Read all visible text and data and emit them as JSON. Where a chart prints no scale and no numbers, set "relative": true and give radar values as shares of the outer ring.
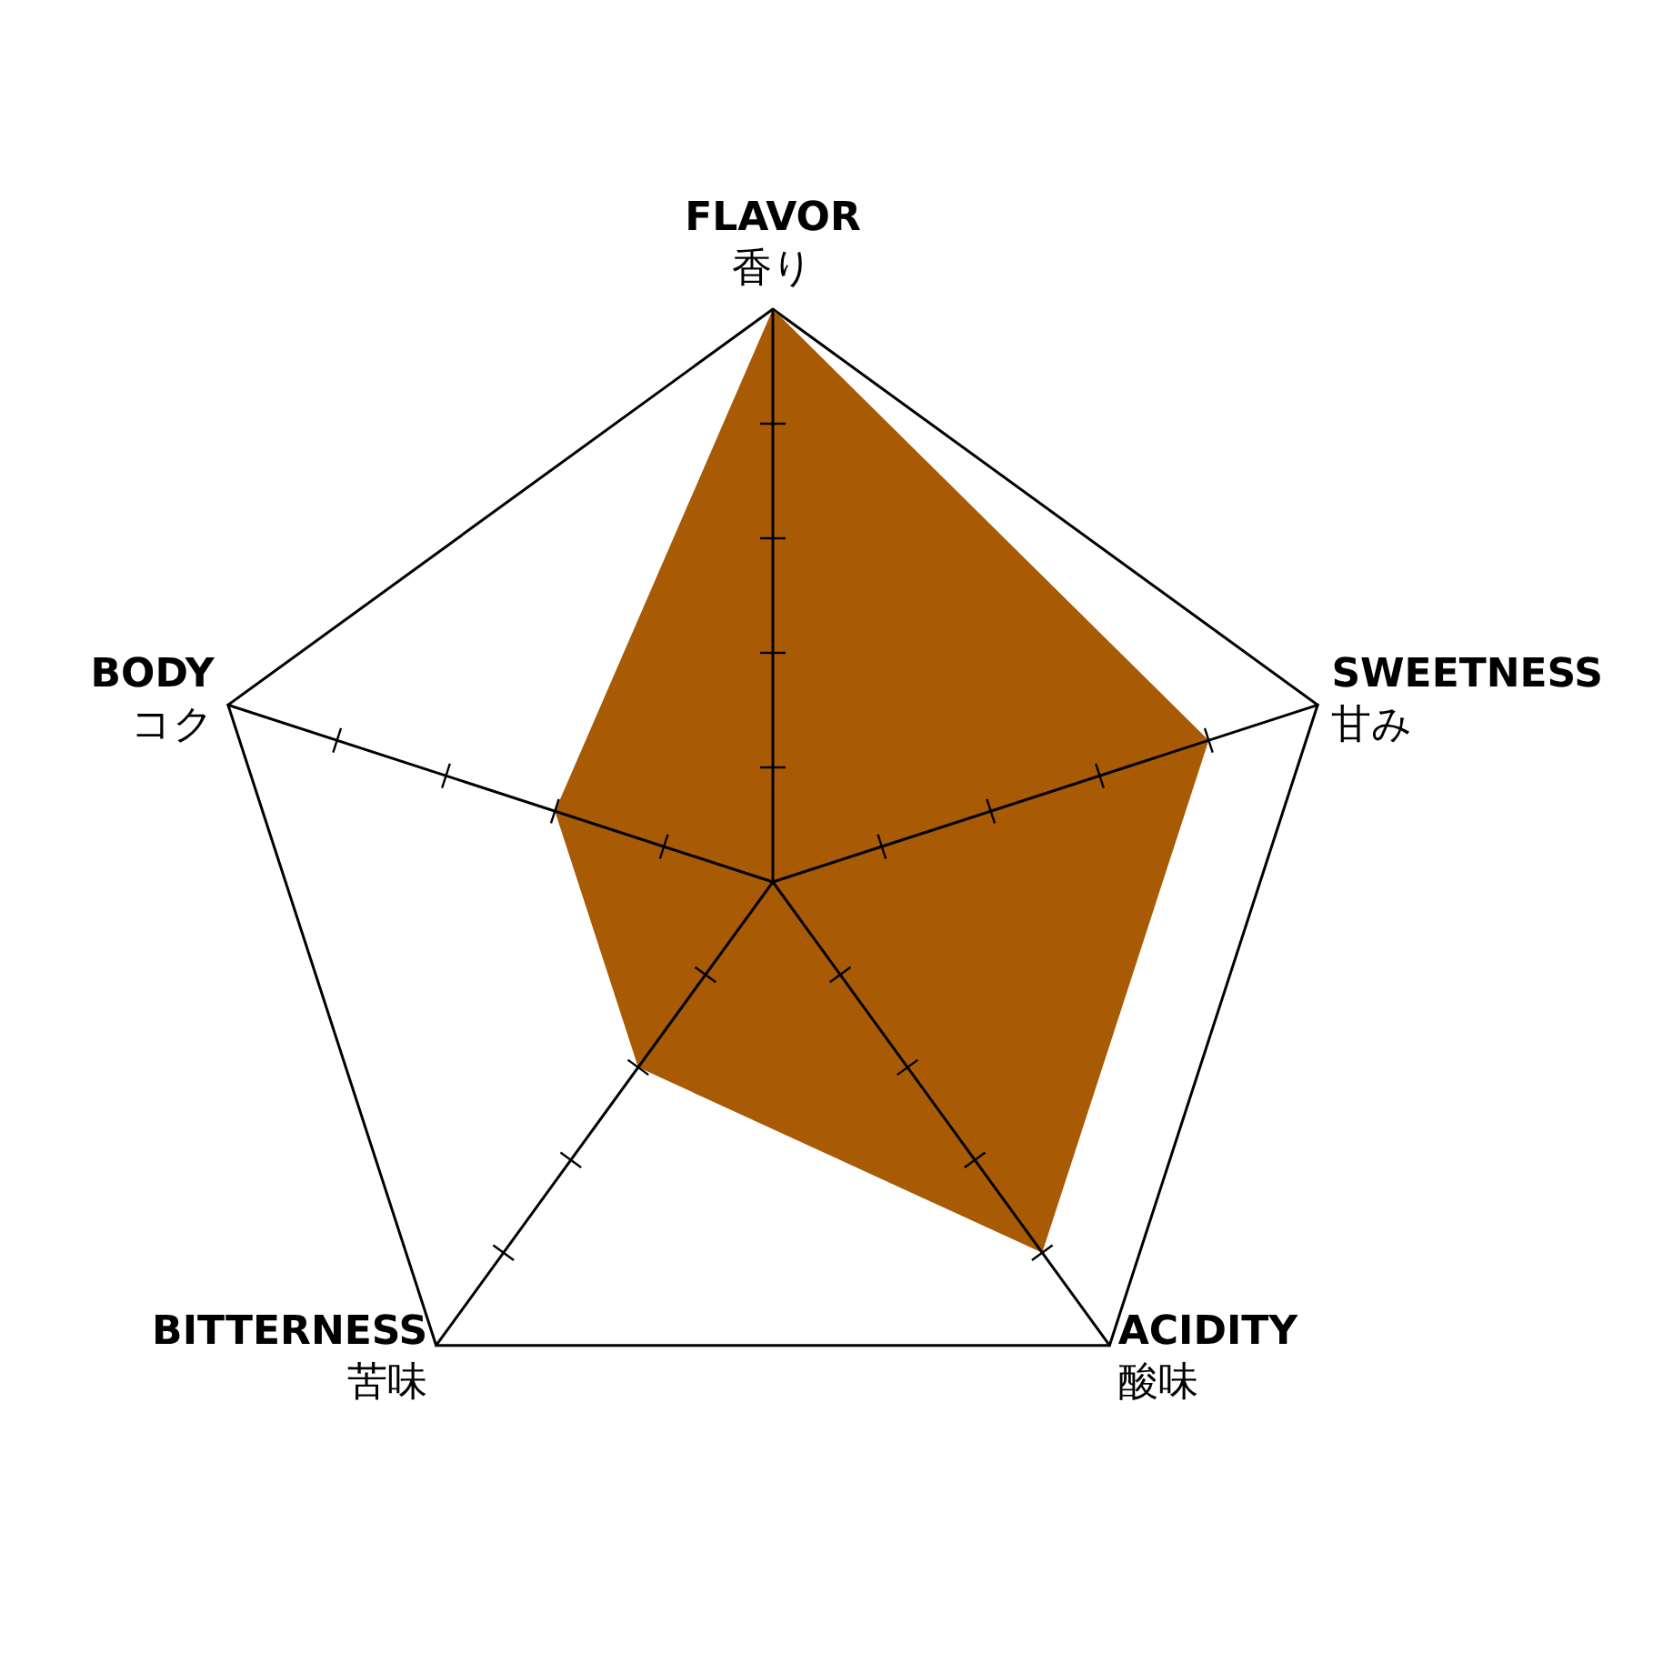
{
  "chart_data": {
    "type": "radar",
    "relative": true,
    "marker": "none",
    "categories": [
      "FLAVOR\n香り",
      "SWEETNESS\n甘み",
      "ACIDITY\n酸味",
      "BITTERNESS\n苦味",
      "BODY\nコク"
    ],
    "series": [
      {
        "color": "#a85a05",
        "values": [
          1,
          0.8,
          0.8,
          0.4,
          0.4
        ]
      }
    ]
  }
}
